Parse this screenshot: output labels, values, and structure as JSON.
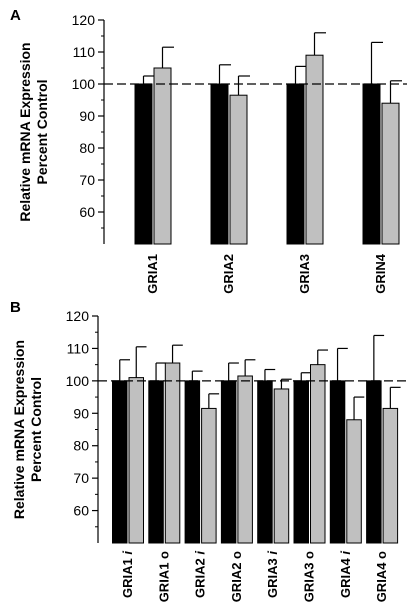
{
  "chart_data": [
    {
      "type": "bar",
      "panel_label": "A",
      "ylabel_lines": [
        "Relative mRNA Expression",
        "Percent Control"
      ],
      "ylim": [
        50,
        120
      ],
      "yticks": [
        60,
        70,
        80,
        90,
        100,
        110,
        120
      ],
      "reference_line": 100,
      "categories": [
        {
          "name": "GRIA1",
          "suffix": ""
        },
        {
          "name": "GRIA2",
          "suffix": ""
        },
        {
          "name": "GRIA3",
          "suffix": ""
        },
        {
          "name": "GRIN4",
          "suffix": ""
        }
      ],
      "series": [
        {
          "color": "#000000",
          "values": [
            100,
            100,
            100,
            100
          ],
          "errors": [
            2.5,
            6,
            5.5,
            13
          ]
        },
        {
          "color": "#c0c0c0",
          "values": [
            105,
            96.5,
            109,
            94
          ],
          "errors": [
            6.5,
            6,
            7,
            7
          ]
        }
      ]
    },
    {
      "type": "bar",
      "panel_label": "B",
      "ylabel_lines": [
        "Relative mRNA Expression",
        "Percent Control"
      ],
      "ylim": [
        50,
        120
      ],
      "yticks": [
        60,
        70,
        80,
        90,
        100,
        110,
        120
      ],
      "reference_line": 100,
      "categories": [
        {
          "name": "GRIA1",
          "suffix": "i"
        },
        {
          "name": "GRIA1",
          "suffix": "o"
        },
        {
          "name": "GRIA2",
          "suffix": "i"
        },
        {
          "name": "GRIA2",
          "suffix": "o"
        },
        {
          "name": "GRIA3",
          "suffix": "i"
        },
        {
          "name": "GRIA3",
          "suffix": "o"
        },
        {
          "name": "GRIA4",
          "suffix": "i"
        },
        {
          "name": "GRIA4",
          "suffix": "o"
        }
      ],
      "series": [
        {
          "color": "#000000",
          "values": [
            100,
            100,
            100,
            100,
            100,
            100,
            100,
            100
          ],
          "errors": [
            6.5,
            5.5,
            3,
            5.5,
            3.5,
            2.5,
            10,
            14
          ]
        },
        {
          "color": "#c0c0c0",
          "values": [
            101,
            105.5,
            91.5,
            101.5,
            97.5,
            105,
            88,
            91.5
          ],
          "errors": [
            9.5,
            5.5,
            4.5,
            5,
            3,
            4.5,
            7,
            6.5
          ]
        }
      ]
    }
  ]
}
